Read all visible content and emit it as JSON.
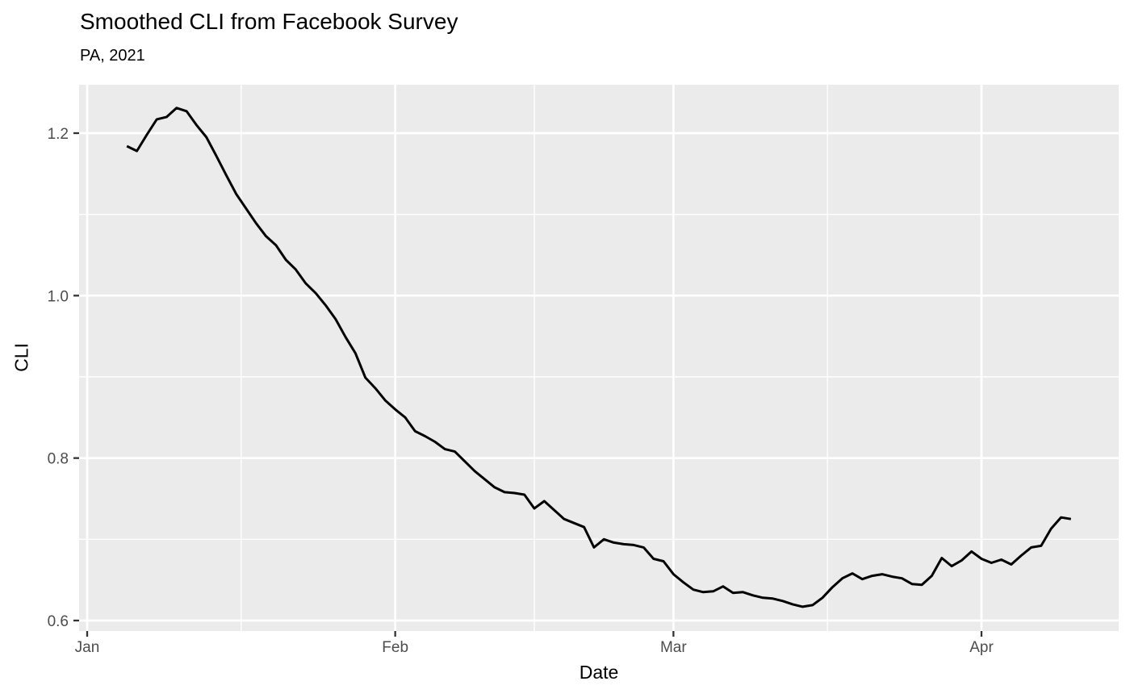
{
  "chart_data": {
    "type": "line",
    "title": "Smoothed CLI from Facebook Survey",
    "subtitle": "PA, 2021",
    "xlabel": "Date",
    "ylabel": "CLI",
    "x_tick_labels": [
      "Jan",
      "Feb",
      "Mar",
      "Apr"
    ],
    "x_tick_dates": [
      "2021-01-01",
      "2021-02-01",
      "2021-03-01",
      "2021-04-01"
    ],
    "y_ticks": [
      0.6,
      0.8,
      1.0,
      1.2
    ],
    "y_tick_labels": [
      "0.6",
      "0.8",
      "1.0",
      "1.2"
    ],
    "ylim": [
      0.586,
      1.262
    ],
    "grid": "on",
    "legend": "none",
    "colors": {
      "line": "#000000",
      "panel_bg": "#EBEBEB",
      "grid": "#FFFFFF",
      "tick_text": "#4D4D4D",
      "tick_mark": "#333333",
      "text": "#000000"
    },
    "series": [
      {
        "name": "Smoothed CLI",
        "start_date": "2021-01-05",
        "end_date": "2021-04-10",
        "frequency": "daily",
        "values": [
          1.184,
          1.178,
          1.198,
          1.217,
          1.22,
          1.231,
          1.227,
          1.21,
          1.195,
          1.172,
          1.148,
          1.125,
          1.107,
          1.089,
          1.073,
          1.062,
          1.044,
          1.032,
          1.015,
          1.003,
          0.988,
          0.971,
          0.949,
          0.929,
          0.899,
          0.886,
          0.871,
          0.86,
          0.85,
          0.833,
          0.827,
          0.82,
          0.811,
          0.808,
          0.796,
          0.784,
          0.774,
          0.764,
          0.758,
          0.757,
          0.755,
          0.738,
          0.747,
          0.736,
          0.725,
          0.72,
          0.715,
          0.69,
          0.7,
          0.696,
          0.694,
          0.693,
          0.69,
          0.676,
          0.673,
          0.657,
          0.647,
          0.638,
          0.635,
          0.636,
          0.642,
          0.634,
          0.635,
          0.631,
          0.628,
          0.627,
          0.624,
          0.62,
          0.617,
          0.619,
          0.628,
          0.641,
          0.652,
          0.658,
          0.651,
          0.655,
          0.657,
          0.654,
          0.652,
          0.645,
          0.644,
          0.655,
          0.677,
          0.667,
          0.674,
          0.685,
          0.676,
          0.671,
          0.675,
          0.669,
          0.68,
          0.69,
          0.692,
          0.713,
          0.727,
          0.725
        ]
      }
    ]
  }
}
